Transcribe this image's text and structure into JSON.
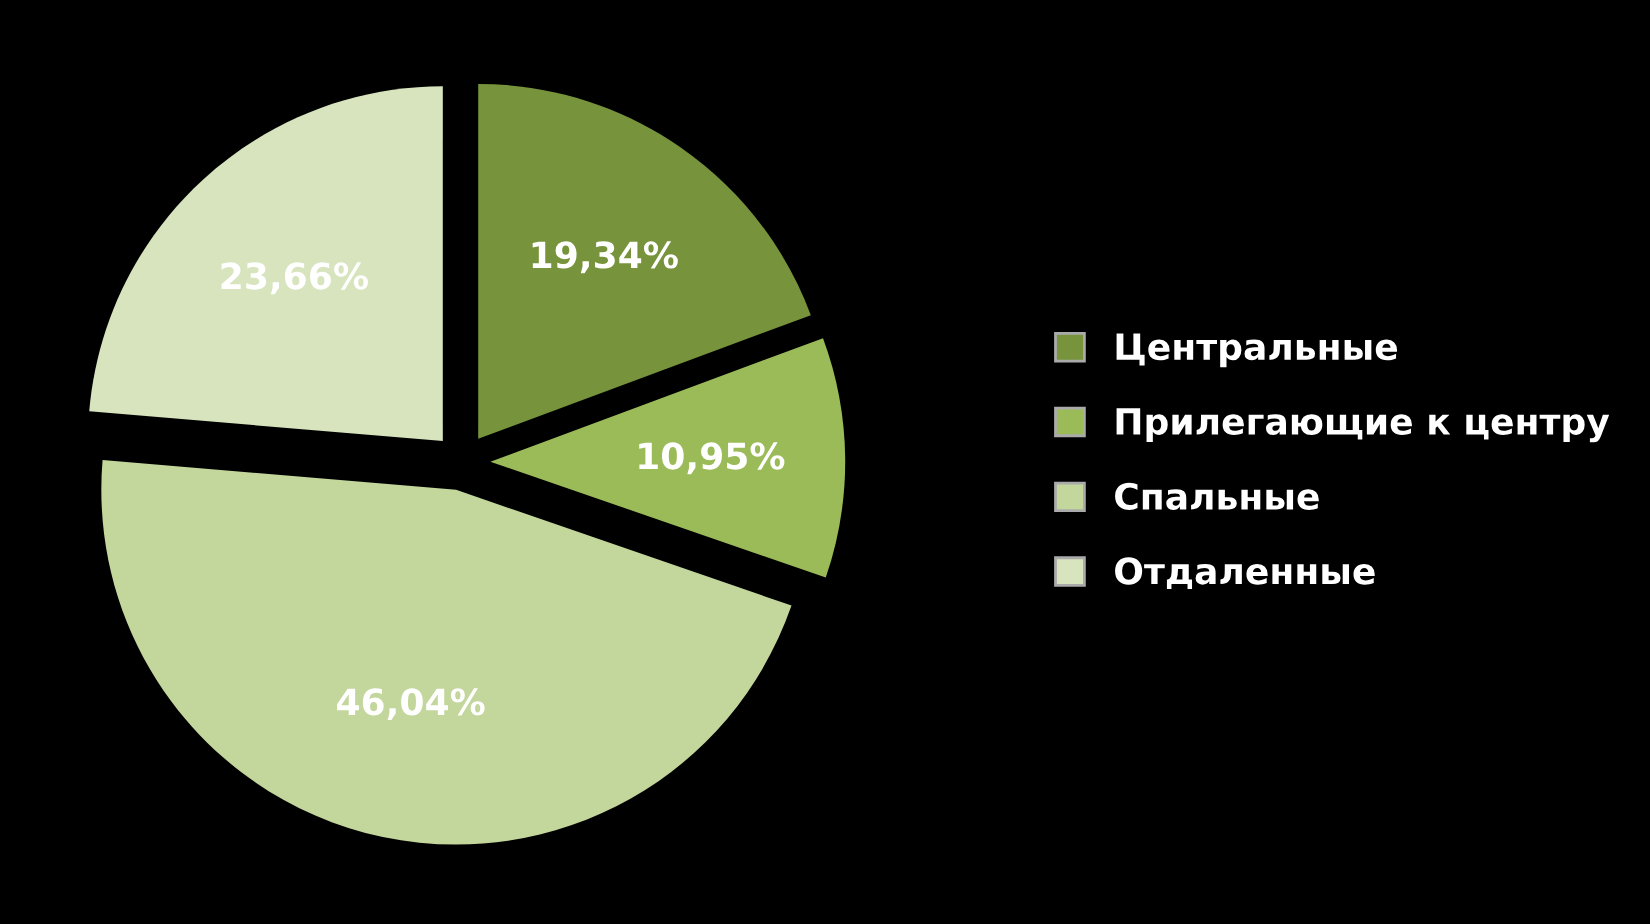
{
  "chart_data": {
    "type": "pie",
    "categories": [
      "Центральные",
      "Прилегающие к центру",
      "Спальные",
      "Отдаленные"
    ],
    "values": [
      19.34,
      10.95,
      46.04,
      23.66
    ],
    "colors": [
      "#77933c",
      "#9bbb59",
      "#c3d69b",
      "#d7e4bd"
    ],
    "value_labels": [
      "19,34%",
      "10,95%",
      "46,04%",
      "23,66%"
    ],
    "legend": "right"
  }
}
